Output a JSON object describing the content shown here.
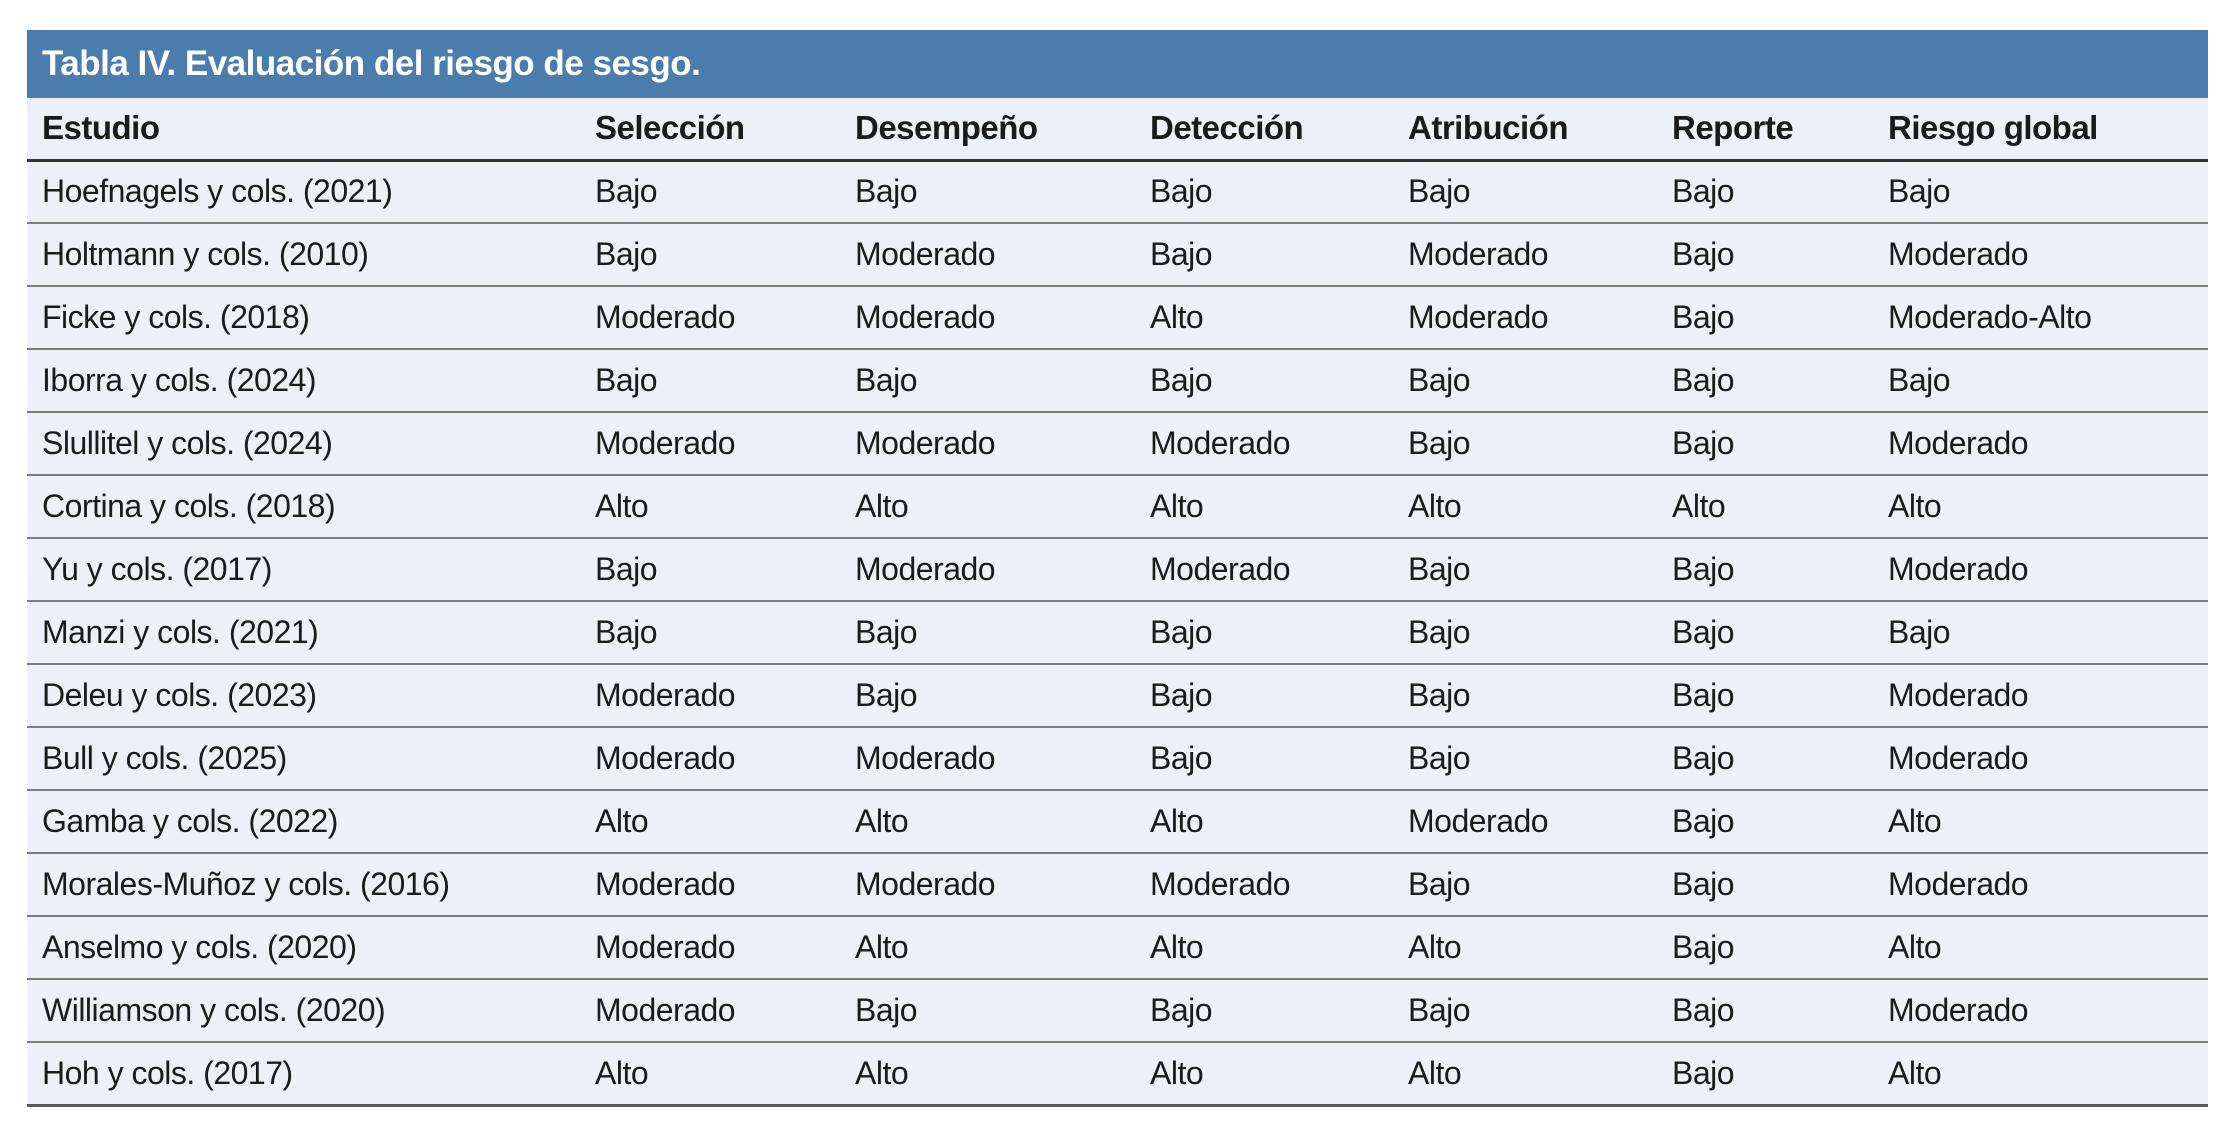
{
  "table": {
    "title": "Tabla IV. Evaluación del riesgo de sesgo.",
    "columns": [
      "Estudio",
      "Selección",
      "Desempeño",
      "Detección",
      "Atribución",
      "Reporte",
      "Riesgo global"
    ],
    "rows": [
      {
        "estudio": "Hoefnagels y cols. (2021)",
        "seleccion": "Bajo",
        "desempeno": "Bajo",
        "deteccion": "Bajo",
        "atribucion": "Bajo",
        "reporte": "Bajo",
        "riesgo_global": "Bajo"
      },
      {
        "estudio": "Holtmann y cols. (2010)",
        "seleccion": "Bajo",
        "desempeno": "Moderado",
        "deteccion": "Bajo",
        "atribucion": "Moderado",
        "reporte": "Bajo",
        "riesgo_global": "Moderado"
      },
      {
        "estudio": "Ficke y cols. (2018)",
        "seleccion": "Moderado",
        "desempeno": "Moderado",
        "deteccion": "Alto",
        "atribucion": "Moderado",
        "reporte": "Bajo",
        "riesgo_global": "Moderado-Alto"
      },
      {
        "estudio": "Iborra y cols. (2024)",
        "seleccion": "Bajo",
        "desempeno": "Bajo",
        "deteccion": "Bajo",
        "atribucion": "Bajo",
        "reporte": "Bajo",
        "riesgo_global": "Bajo"
      },
      {
        "estudio": "Slullitel y cols. (2024)",
        "seleccion": "Moderado",
        "desempeno": "Moderado",
        "deteccion": "Moderado",
        "atribucion": "Bajo",
        "reporte": "Bajo",
        "riesgo_global": "Moderado"
      },
      {
        "estudio": "Cortina y cols. (2018)",
        "seleccion": "Alto",
        "desempeno": "Alto",
        "deteccion": "Alto",
        "atribucion": "Alto",
        "reporte": "Alto",
        "riesgo_global": "Alto"
      },
      {
        "estudio": "Yu y cols. (2017)",
        "seleccion": "Bajo",
        "desempeno": "Moderado",
        "deteccion": "Moderado",
        "atribucion": "Bajo",
        "reporte": "Bajo",
        "riesgo_global": "Moderado"
      },
      {
        "estudio": "Manzi y cols. (2021)",
        "seleccion": "Bajo",
        "desempeno": "Bajo",
        "deteccion": "Bajo",
        "atribucion": "Bajo",
        "reporte": "Bajo",
        "riesgo_global": "Bajo"
      },
      {
        "estudio": "Deleu y cols. (2023)",
        "seleccion": "Moderado",
        "desempeno": "Bajo",
        "deteccion": "Bajo",
        "atribucion": "Bajo",
        "reporte": "Bajo",
        "riesgo_global": "Moderado"
      },
      {
        "estudio": "Bull y cols. (2025)",
        "seleccion": "Moderado",
        "desempeno": "Moderado",
        "deteccion": "Bajo",
        "atribucion": "Bajo",
        "reporte": "Bajo",
        "riesgo_global": "Moderado"
      },
      {
        "estudio": "Gamba y cols. (2022)",
        "seleccion": "Alto",
        "desempeno": "Alto",
        "deteccion": "Alto",
        "atribucion": "Moderado",
        "reporte": "Bajo",
        "riesgo_global": "Alto"
      },
      {
        "estudio": "Morales-Muñoz y cols. (2016)",
        "seleccion": "Moderado",
        "desempeno": "Moderado",
        "deteccion": "Moderado",
        "atribucion": "Bajo",
        "reporte": "Bajo",
        "riesgo_global": "Moderado"
      },
      {
        "estudio": "Anselmo y cols. (2020)",
        "seleccion": "Moderado",
        "desempeno": "Alto",
        "deteccion": "Alto",
        "atribucion": "Alto",
        "reporte": "Bajo",
        "riesgo_global": "Alto"
      },
      {
        "estudio": "Williamson y cols. (2020)",
        "seleccion": "Moderado",
        "desempeno": "Bajo",
        "deteccion": "Bajo",
        "atribucion": "Bajo",
        "reporte": "Bajo",
        "riesgo_global": "Moderado"
      },
      {
        "estudio": "Hoh y cols. (2017)",
        "seleccion": "Alto",
        "desempeno": "Alto",
        "deteccion": "Alto",
        "atribucion": "Alto",
        "reporte": "Bajo",
        "riesgo_global": "Alto"
      }
    ]
  },
  "colors": {
    "title_bar_background": "#4a7dab",
    "title_text": "#ffffff",
    "row_background": "#edf0f7",
    "body_text": "#1b1b1b",
    "row_separator": "#7d7d7d",
    "header_rule": "#333333"
  }
}
